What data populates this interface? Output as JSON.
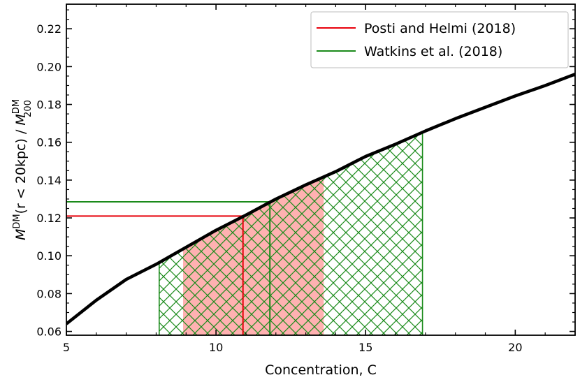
{
  "chart_data": {
    "type": "line",
    "xlabel": "Concentration, C",
    "ylabel_parts": {
      "m1": "M",
      "sup1": "DM",
      "mid": "(r < 20kpc)  /  ",
      "m2": "M",
      "sup2": "DM",
      "sub2": "200"
    },
    "xlim": [
      5,
      22
    ],
    "ylim": [
      0.058,
      0.233
    ],
    "xticks": [
      5,
      10,
      15,
      20
    ],
    "xtick_labels": [
      "5",
      "10",
      "15",
      "20"
    ],
    "yticks": [
      0.06,
      0.08,
      0.1,
      0.12,
      0.14,
      0.16,
      0.18,
      0.2,
      0.22
    ],
    "ytick_labels": [
      "0.06",
      "0.08",
      "0.10",
      "0.12",
      "0.14",
      "0.16",
      "0.18",
      "0.20",
      "0.22"
    ],
    "curve": {
      "color": "#000000",
      "x": [
        5,
        6,
        7,
        8,
        9,
        10,
        11,
        12,
        13,
        14,
        15,
        16,
        17,
        18,
        19,
        20,
        21,
        22
      ],
      "y": [
        0.064,
        0.0765,
        0.0875,
        0.0955,
        0.1045,
        0.1135,
        0.1215,
        0.13,
        0.1375,
        0.1445,
        0.1525,
        0.159,
        0.166,
        0.1725,
        0.1785,
        0.1845,
        0.19,
        0.196
      ]
    },
    "series": [
      {
        "name": "Posti and Helmi (2018)",
        "color": "#e8000b",
        "fill": "#ffb1b1",
        "x_value": 10.9,
        "y_value": 0.121,
        "band_x": [
          8.9,
          13.6
        ],
        "band_y_top": [
          0.1045,
          0.141
        ]
      },
      {
        "name": "Watkins et al. (2018)",
        "color": "#1a8a1a",
        "x_value": 11.8,
        "y_value": 0.1285,
        "band_x": [
          8.1,
          16.9
        ],
        "band_y_top": [
          0.0955,
          0.1655
        ]
      }
    ],
    "legend": {
      "location": "upper right"
    },
    "grid": false
  }
}
